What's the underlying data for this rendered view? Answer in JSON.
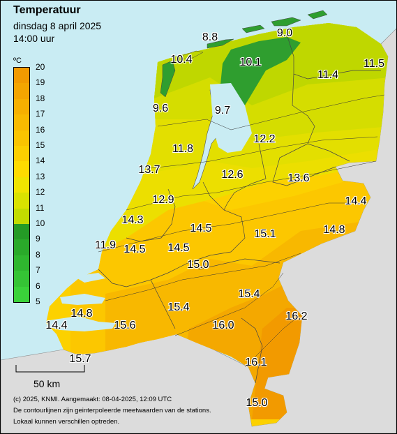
{
  "header": {
    "title": "Temperatuur",
    "date": "dinsdag 8 april 2025",
    "time": "14:00 uur"
  },
  "legend": {
    "unit": "ºC",
    "ticks": [
      "20",
      "19",
      "18",
      "17",
      "16",
      "15",
      "14",
      "13",
      "12",
      "11",
      "10",
      "9",
      "8",
      "7",
      "6",
      "5"
    ],
    "colors": [
      "#f29a00",
      "#f4a500",
      "#f6b000",
      "#f8ba00",
      "#fac400",
      "#fccf00",
      "#fedb00",
      "#f0e400",
      "#d9e200",
      "#c2dc00",
      "#a9d300",
      "#249b26",
      "#2aaa2a",
      "#2fb72f",
      "#35c435",
      "#3ad23a"
    ]
  },
  "scale_bar": {
    "label": "50 km"
  },
  "footer": [
    "(c) 2025, KNMI. Aangemaakt: 08-04-2025, 12:09 UTC",
    "De contourlijnen zijn geinterpoleerde meetwaarden van de stations.",
    "Lokaal kunnen verschillen optreden."
  ],
  "stations": [
    {
      "value": "8.8"
    },
    {
      "value": "9.0"
    },
    {
      "value": "10.4"
    },
    {
      "value": "10.1"
    },
    {
      "value": "11.5"
    },
    {
      "value": "11.4"
    },
    {
      "value": "9.6"
    },
    {
      "value": "9.7"
    },
    {
      "value": "12.2"
    },
    {
      "value": "11.8"
    },
    {
      "value": "13.7"
    },
    {
      "value": "12.6"
    },
    {
      "value": "13.6"
    },
    {
      "value": "14.4"
    },
    {
      "value": "12.9"
    },
    {
      "value": "14.3"
    },
    {
      "value": "14.5"
    },
    {
      "value": "15.1"
    },
    {
      "value": "14.8"
    },
    {
      "value": "11.9"
    },
    {
      "value": "14.5"
    },
    {
      "value": "14.5"
    },
    {
      "value": "15.0"
    },
    {
      "value": "15.4"
    },
    {
      "value": "14.8"
    },
    {
      "value": "15.4"
    },
    {
      "value": "16.2"
    },
    {
      "value": "14.4"
    },
    {
      "value": "15.6"
    },
    {
      "value": "16.0"
    },
    {
      "value": "15.7"
    },
    {
      "value": "16.1"
    },
    {
      "value": "15.0"
    }
  ]
}
